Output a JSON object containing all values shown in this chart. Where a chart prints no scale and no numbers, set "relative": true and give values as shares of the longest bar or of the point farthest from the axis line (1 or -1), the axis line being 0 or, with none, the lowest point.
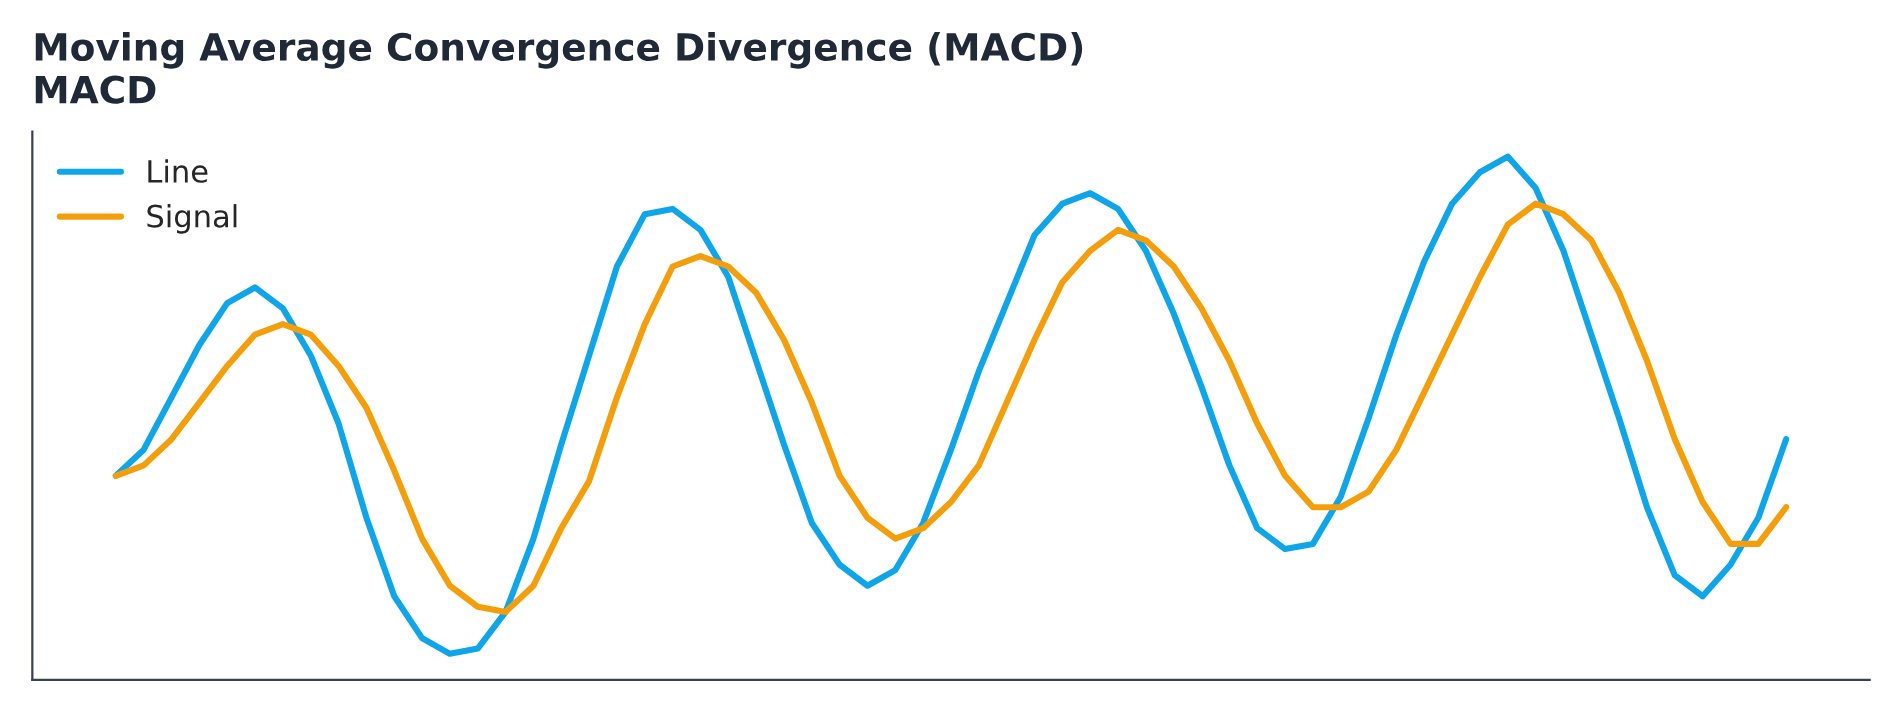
{
  "chart_data": {
    "type": "line",
    "title": "Moving Average Convergence Divergence (MACD)",
    "subtitle": "MACD",
    "relative": true,
    "legend": "top left",
    "grid": false,
    "marker": "none",
    "line_style": "solid",
    "categories": [
      null,
      null,
      null,
      null,
      null,
      null,
      null,
      null,
      null,
      null,
      null,
      null,
      null,
      null,
      null,
      null,
      null,
      null,
      null,
      null,
      null,
      null,
      null,
      null,
      null,
      null,
      null,
      null,
      null,
      null,
      null,
      null,
      null,
      null,
      null,
      null,
      null,
      null,
      null,
      null,
      null,
      null,
      null,
      null,
      null,
      null,
      null,
      null,
      null,
      null,
      null,
      null,
      null,
      null,
      null,
      null,
      null,
      null,
      null,
      null,
      null
    ],
    "series": [
      {
        "name": "Line",
        "color": "#0ea5e9",
        "values": [
          0.39,
          0.44,
          0.54,
          0.64,
          0.72,
          0.75,
          0.71,
          0.62,
          0.49,
          0.31,
          0.16,
          0.08,
          0.05,
          0.06,
          0.13,
          0.27,
          0.45,
          0.62,
          0.79,
          0.89,
          0.9,
          0.86,
          0.77,
          0.61,
          0.45,
          0.3,
          0.22,
          0.18,
          0.21,
          0.3,
          0.44,
          0.59,
          0.72,
          0.85,
          0.91,
          0.93,
          0.9,
          0.82,
          0.7,
          0.56,
          0.41,
          0.29,
          0.25,
          0.26,
          0.35,
          0.5,
          0.66,
          0.8,
          0.91,
          0.97,
          1.0,
          0.94,
          0.82,
          0.66,
          0.5,
          0.33,
          0.2,
          0.16,
          0.22,
          0.31,
          0.46
        ]
      },
      {
        "name": "Signal",
        "color": "#f59e0b",
        "values": [
          0.39,
          0.41,
          0.46,
          0.53,
          0.6,
          0.66,
          0.68,
          0.66,
          0.6,
          0.52,
          0.4,
          0.27,
          0.18,
          0.14,
          0.13,
          0.18,
          0.29,
          0.38,
          0.54,
          0.68,
          0.79,
          0.81,
          0.79,
          0.74,
          0.65,
          0.53,
          0.39,
          0.31,
          0.27,
          0.29,
          0.34,
          0.41,
          0.53,
          0.65,
          0.76,
          0.82,
          0.86,
          0.84,
          0.79,
          0.71,
          0.61,
          0.49,
          0.39,
          0.33,
          0.33,
          0.36,
          0.44,
          0.55,
          0.66,
          0.77,
          0.87,
          0.91,
          0.89,
          0.84,
          0.74,
          0.61,
          0.46,
          0.34,
          0.26,
          0.26,
          0.33
        ]
      }
    ]
  }
}
